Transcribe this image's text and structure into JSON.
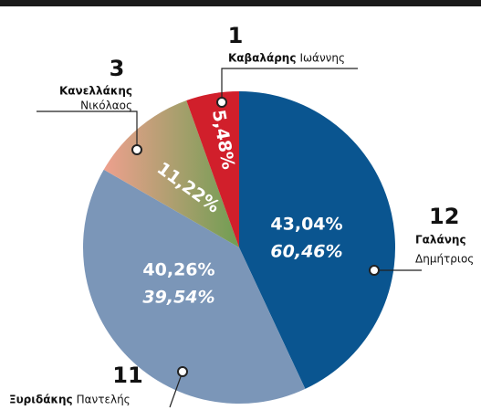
{
  "chart_data": {
    "type": "pie",
    "categories": [
      {
        "seats": "12",
        "surname": "Γαλάνης",
        "firstname": "Δημήτριος"
      },
      {
        "seats": "11",
        "surname": "Ξυριδάκης",
        "firstname": "Παντελής"
      },
      {
        "seats": "3",
        "surname": "Κανελλάκης",
        "firstname": "Νικόλαος"
      },
      {
        "seats": "1",
        "surname": "Καβαλάρης",
        "firstname": "Ιωάννης"
      }
    ],
    "values": [
      43.04,
      40.26,
      11.22,
      5.48
    ],
    "value_labels": [
      "43,04%",
      "40,26%",
      "11,22%",
      "5,48%"
    ],
    "second_round_values": [
      60.46,
      39.54,
      null,
      null
    ],
    "second_round_value_labels": [
      "60,46%",
      "39,54%",
      null,
      null
    ],
    "colors": [
      "#0a5590",
      "#7b96b8",
      "#c9a07a",
      "#d11f2b"
    ]
  }
}
